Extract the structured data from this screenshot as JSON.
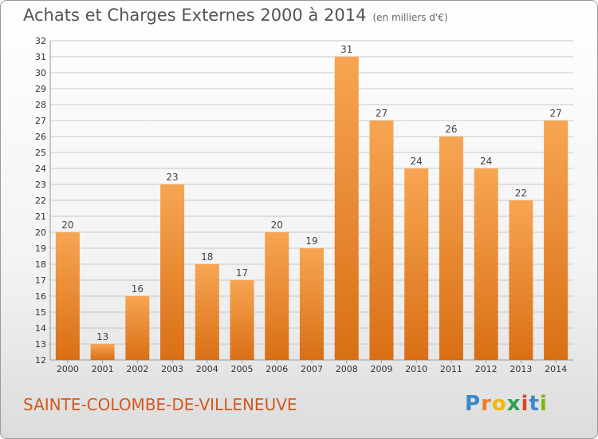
{
  "header": {
    "title": "Achats et Charges Externes 2000 à 2014",
    "unit": "(en milliers d'€)"
  },
  "commune": "SAINTE-COLOMBE-DE-VILLENEUVE",
  "logo": {
    "text": "Proxiti",
    "letter_colors": [
      "#3b87c9",
      "#e87f2a",
      "#f2b705",
      "#2e9f4e",
      "#d8462b",
      "#3b87c9",
      "#7ab800"
    ]
  },
  "chart_data": {
    "type": "bar",
    "categories": [
      "2000",
      "2001",
      "2002",
      "2003",
      "2004",
      "2005",
      "2006",
      "2007",
      "2008",
      "2009",
      "2010",
      "2011",
      "2012",
      "2013",
      "2014"
    ],
    "values": [
      20,
      13,
      16,
      23,
      18,
      17,
      20,
      19,
      31,
      27,
      24,
      26,
      24,
      22,
      27
    ],
    "title": "Achats et Charges Externes 2000 à 2014",
    "xlabel": "",
    "ylabel": "",
    "ylim": [
      12,
      32
    ],
    "yticks": [
      12,
      13,
      14,
      15,
      16,
      17,
      18,
      19,
      20,
      21,
      22,
      23,
      24,
      25,
      26,
      27,
      28,
      29,
      30,
      31,
      32
    ],
    "grid": true,
    "bar_color": "#f0902a"
  }
}
